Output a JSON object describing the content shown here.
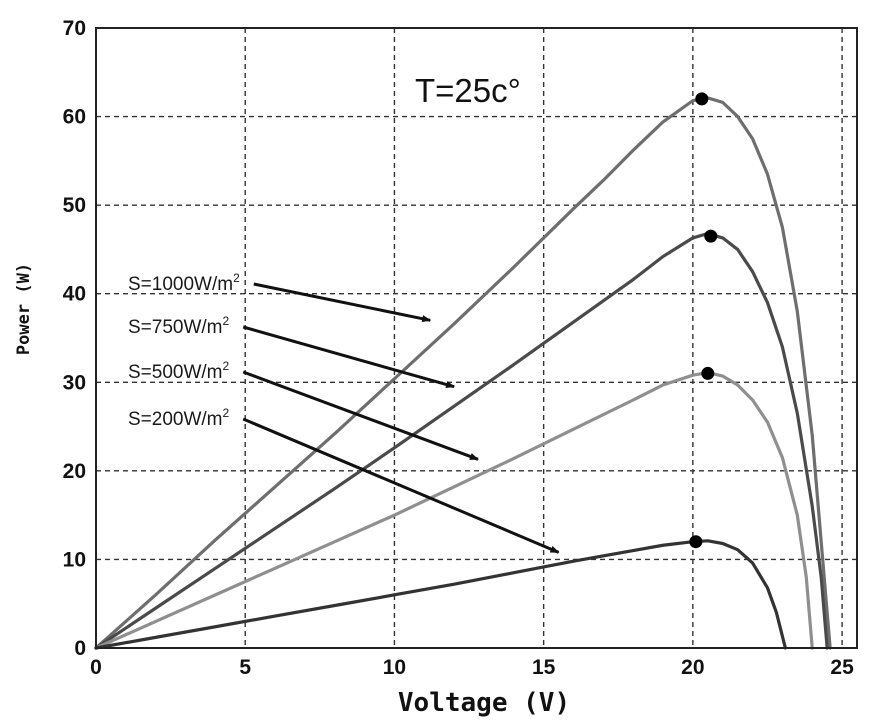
{
  "chart_data": {
    "type": "line",
    "title": "",
    "xlabel": "Voltage (V)",
    "ylabel": "Power (W)",
    "xlim": [
      0,
      25.5
    ],
    "ylim": [
      0,
      70
    ],
    "xticks": [
      "0",
      "5",
      "10",
      "15",
      "20",
      "25"
    ],
    "yticks": [
      "0",
      "10",
      "20",
      "30",
      "40",
      "50",
      "60",
      "70"
    ],
    "grid": true,
    "condition_label": "T=25c°",
    "series": [
      {
        "name": "S=1000W/m²",
        "color": "#6e6e6e",
        "points": [
          [
            0,
            0
          ],
          [
            2,
            6
          ],
          [
            4,
            12.2
          ],
          [
            6,
            18.2
          ],
          [
            8,
            24.2
          ],
          [
            10,
            30.4
          ],
          [
            12,
            36.6
          ],
          [
            14,
            43
          ],
          [
            16,
            49.6
          ],
          [
            17,
            52.8
          ],
          [
            18,
            56.2
          ],
          [
            19,
            59.4
          ],
          [
            20,
            61.8
          ],
          [
            20.5,
            62.1
          ],
          [
            21,
            61.6
          ],
          [
            21.5,
            60
          ],
          [
            22,
            57.5
          ],
          [
            22.5,
            53.5
          ],
          [
            23,
            47.5
          ],
          [
            23.5,
            38
          ],
          [
            24,
            24
          ],
          [
            24.3,
            12
          ],
          [
            24.6,
            0
          ]
        ]
      },
      {
        "name": "S=750W/m²",
        "color": "#4a4a4a",
        "points": [
          [
            0,
            0
          ],
          [
            2,
            4.5
          ],
          [
            4,
            9
          ],
          [
            6,
            13.5
          ],
          [
            8,
            18
          ],
          [
            10,
            22.6
          ],
          [
            12,
            27.3
          ],
          [
            14,
            32
          ],
          [
            16,
            36.8
          ],
          [
            18,
            41.6
          ],
          [
            19,
            44.2
          ],
          [
            20,
            46.3
          ],
          [
            20.5,
            46.8
          ],
          [
            21,
            46.3
          ],
          [
            21.5,
            45
          ],
          [
            22,
            42.5
          ],
          [
            22.5,
            39
          ],
          [
            23,
            34
          ],
          [
            23.5,
            26.5
          ],
          [
            24,
            16
          ],
          [
            24.3,
            8
          ],
          [
            24.5,
            0
          ]
        ]
      },
      {
        "name": "S=500W/m²",
        "color": "#8f8f8f",
        "points": [
          [
            0,
            0
          ],
          [
            2,
            3
          ],
          [
            4,
            6
          ],
          [
            6,
            9
          ],
          [
            8,
            12
          ],
          [
            10,
            15
          ],
          [
            12,
            18.2
          ],
          [
            14,
            21.4
          ],
          [
            16,
            24.7
          ],
          [
            18,
            28
          ],
          [
            19,
            29.7
          ],
          [
            20,
            30.8
          ],
          [
            20.5,
            31.1
          ],
          [
            21,
            30.7
          ],
          [
            21.5,
            29.7
          ],
          [
            22,
            28
          ],
          [
            22.5,
            25.5
          ],
          [
            23,
            21.5
          ],
          [
            23.5,
            15
          ],
          [
            23.8,
            8
          ],
          [
            24,
            0
          ]
        ]
      },
      {
        "name": "S=200W/m²",
        "color": "#333333",
        "points": [
          [
            0,
            0
          ],
          [
            2,
            1.2
          ],
          [
            4,
            2.4
          ],
          [
            6,
            3.6
          ],
          [
            8,
            4.8
          ],
          [
            10,
            6
          ],
          [
            12,
            7.2
          ],
          [
            14,
            8.5
          ],
          [
            16,
            9.8
          ],
          [
            18,
            11
          ],
          [
            19,
            11.6
          ],
          [
            20,
            12
          ],
          [
            20.5,
            12.1
          ],
          [
            21,
            11.8
          ],
          [
            21.5,
            11.1
          ],
          [
            22,
            9.6
          ],
          [
            22.5,
            6.8
          ],
          [
            22.8,
            4
          ],
          [
            23.1,
            0
          ]
        ]
      }
    ],
    "mpp_markers": [
      {
        "x": 20.3,
        "y": 62
      },
      {
        "x": 20.6,
        "y": 46.5
      },
      {
        "x": 20.5,
        "y": 31
      },
      {
        "x": 20.1,
        "y": 12
      }
    ],
    "annotations": [
      {
        "label": "S=1000W/m",
        "sup": "2",
        "target": [
          11.2,
          37
        ]
      },
      {
        "label": "S=750W/m",
        "sup": "2",
        "target": [
          12.0,
          29.5
        ]
      },
      {
        "label": "S=500W/m",
        "sup": "2",
        "target": [
          12.8,
          21.3
        ]
      },
      {
        "label": "S=200W/m",
        "sup": "2",
        "target": [
          15.5,
          10.8
        ]
      }
    ]
  }
}
